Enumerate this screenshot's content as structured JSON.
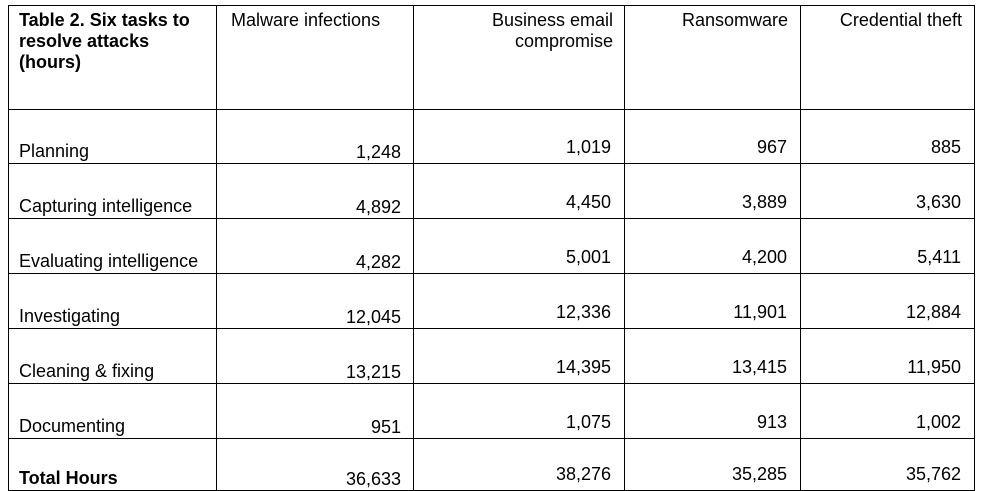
{
  "table": {
    "caption": "Table 2. Six tasks to resolve attacks (hours)",
    "columns": [
      "Malware infections",
      "Business email compromise",
      "Ransomware",
      "Credential theft"
    ],
    "rows": [
      {
        "task": "Planning",
        "values": [
          "1,248",
          "1,019",
          "967",
          "885"
        ]
      },
      {
        "task": "Capturing intelligence",
        "values": [
          "4,892",
          "4,450",
          "3,889",
          "3,630"
        ]
      },
      {
        "task": "Evaluating intelligence",
        "values": [
          "4,282",
          "5,001",
          "4,200",
          "5,411"
        ]
      },
      {
        "task": "Investigating",
        "values": [
          "12,045",
          "12,336",
          "11,901",
          "12,884"
        ]
      },
      {
        "task": "Cleaning & fixing",
        "values": [
          "13,215",
          "14,395",
          "13,415",
          "11,950"
        ]
      },
      {
        "task": "Documenting",
        "values": [
          "951",
          "1,075",
          "913",
          "1,002"
        ]
      },
      {
        "task": "Total Hours",
        "values": [
          "36,633",
          "38,276",
          "35,285",
          "35,762"
        ]
      }
    ]
  }
}
